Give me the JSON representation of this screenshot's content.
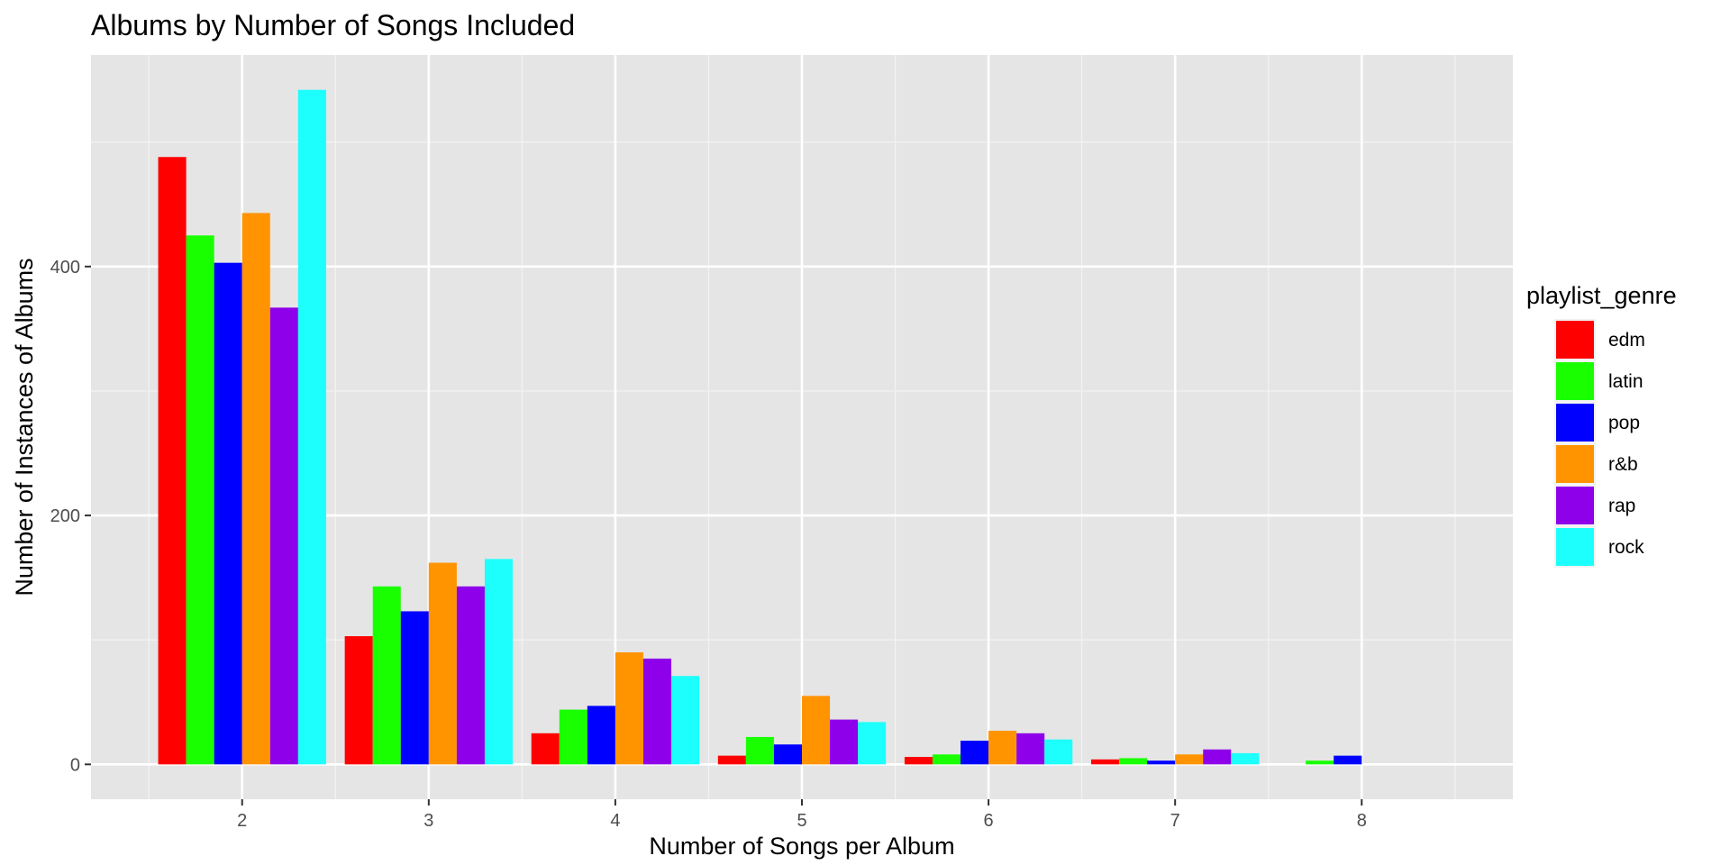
{
  "chart_data": {
    "type": "bar",
    "title": "Albums by Number of Songs Included",
    "xlabel": "Number of Songs per Album",
    "ylabel": "Number of Instances of Albums",
    "categories": [
      "2",
      "3",
      "4",
      "5",
      "6",
      "7",
      "8"
    ],
    "x_values": [
      2,
      3,
      4,
      5,
      6,
      7,
      8
    ],
    "ylim": [
      -28,
      570
    ],
    "y_ticks": [
      0,
      200,
      400
    ],
    "grid": true,
    "legend": {
      "title": "playlist_genre",
      "position": "right"
    },
    "series": [
      {
        "name": "edm",
        "color": "#ff0000",
        "values": [
          488,
          103,
          25,
          7,
          6,
          4,
          0
        ]
      },
      {
        "name": "latin",
        "color": "#19ff00",
        "values": [
          425,
          143,
          44,
          22,
          8,
          5,
          3
        ]
      },
      {
        "name": "pop",
        "color": "#0000ff",
        "values": [
          403,
          123,
          47,
          16,
          19,
          3,
          7
        ]
      },
      {
        "name": "r&b",
        "color": "#ff9400",
        "values": [
          443,
          162,
          90,
          55,
          27,
          8,
          0
        ]
      },
      {
        "name": "rap",
        "color": "#8f00ea",
        "values": [
          367,
          143,
          85,
          36,
          25,
          12,
          0
        ]
      },
      {
        "name": "rock",
        "color": "#1cfffc",
        "values": [
          542,
          165,
          71,
          34,
          20,
          9,
          0
        ]
      }
    ]
  }
}
